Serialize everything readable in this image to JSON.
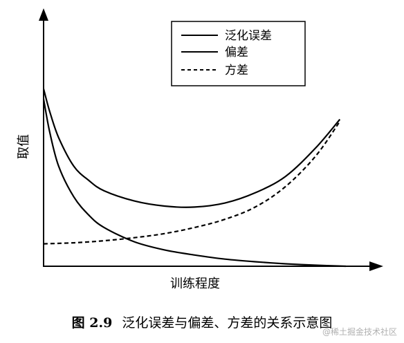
{
  "chart_data": {
    "type": "line",
    "title": "",
    "xlabel": "训练程度",
    "ylabel": "取值",
    "xlim": [
      0,
      10
    ],
    "ylim": [
      0,
      10
    ],
    "legend_placement": "top-center",
    "series": [
      {
        "name": "泛化误差",
        "style": "solid",
        "x": [
          0,
          0.2,
          0.5,
          1,
          1.5,
          2,
          3,
          4,
          5,
          6,
          7,
          8,
          9,
          9.8
        ],
        "y": [
          8.7,
          7.6,
          6.3,
          4.9,
          4.2,
          3.7,
          3.2,
          2.95,
          2.9,
          3.1,
          3.6,
          4.4,
          5.8,
          7.2
        ]
      },
      {
        "name": "偏差",
        "style": "solid",
        "x": [
          0,
          0.2,
          0.5,
          1,
          1.5,
          2,
          3,
          4,
          5,
          6,
          7,
          8,
          9,
          10
        ],
        "y": [
          8.2,
          6.6,
          4.9,
          3.4,
          2.5,
          1.9,
          1.2,
          0.8,
          0.55,
          0.35,
          0.22,
          0.12,
          0.05,
          0
        ]
      },
      {
        "name": "方差",
        "style": "dashed",
        "x": [
          0,
          1,
          2,
          3,
          4,
          5,
          6,
          7,
          8,
          9,
          9.8
        ],
        "y": [
          1.1,
          1.15,
          1.25,
          1.4,
          1.6,
          1.9,
          2.3,
          2.9,
          3.9,
          5.4,
          7.1
        ]
      }
    ]
  },
  "caption": {
    "figure_number": "图 2.9",
    "text": "泛化误差与偏差、方差的关系示意图"
  },
  "watermark": "@稀土掘金技术社区",
  "colors": {
    "line": "#000000",
    "watermark": "#b0b0b0"
  }
}
